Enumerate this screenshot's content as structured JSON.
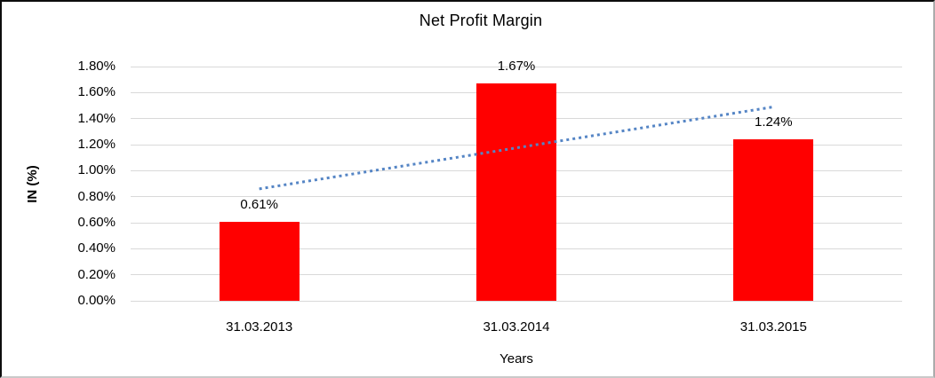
{
  "chart_data": {
    "type": "bar",
    "title": "Net Profit Margin",
    "xlabel": "Years",
    "ylabel": "IN (%)",
    "categories": [
      "31.03.2013",
      "31.03.2014",
      "31.03.2015"
    ],
    "values": [
      0.61,
      1.67,
      1.24
    ],
    "data_labels": [
      "0.61%",
      "1.67%",
      "1.24%"
    ],
    "y_ticks": [
      "0.00%",
      "0.20%",
      "0.40%",
      "0.60%",
      "0.80%",
      "1.00%",
      "1.20%",
      "1.40%",
      "1.60%",
      "1.80%"
    ],
    "ylim": [
      0,
      1.8
    ],
    "grid": true,
    "legend": "none",
    "bar_color": "#ff0000",
    "gridline_color": "#d9d9d9",
    "text_color": "#000000",
    "trendline": {
      "type": "linear",
      "style": "dotted",
      "color": "#5585c5",
      "start_value": 0.86,
      "end_value": 1.49
    }
  }
}
